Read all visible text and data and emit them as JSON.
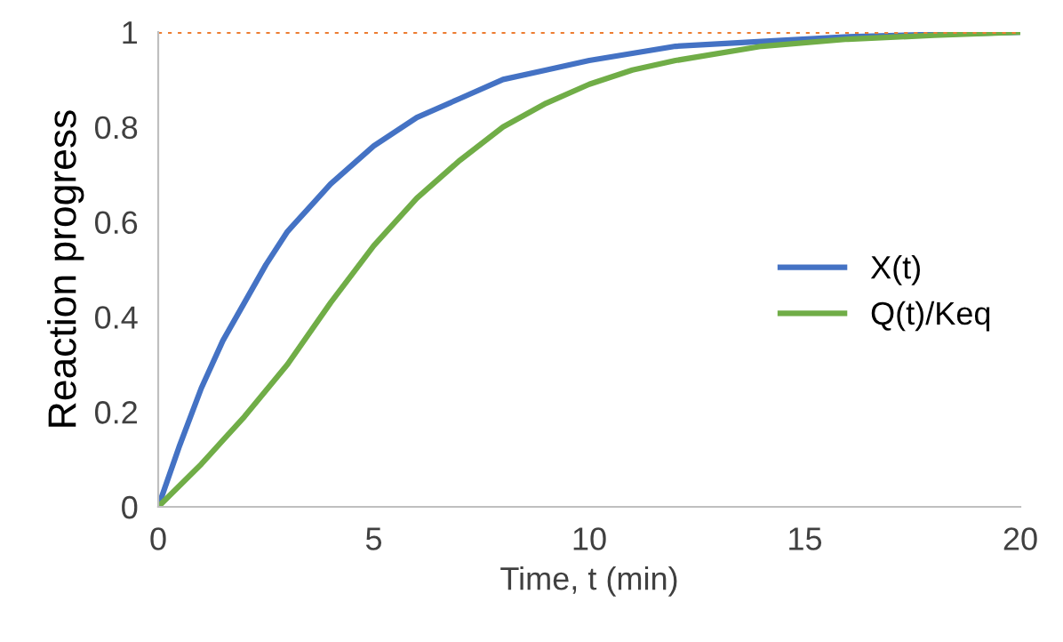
{
  "chart_data": {
    "type": "line",
    "xlabel": "Time, t (min)",
    "ylabel": "Reaction progress",
    "xlim": [
      0,
      20
    ],
    "xticks": [
      0,
      5,
      10,
      15,
      20
    ],
    "ylim": [
      0,
      1
    ],
    "yticks": [
      0,
      0.2,
      0.4,
      0.6,
      0.8,
      1
    ],
    "grid": false,
    "legend": "right",
    "marker": "none",
    "line_style": "solid",
    "series": [
      {
        "name": "X(t)",
        "color": "#4472c4",
        "x": [
          0,
          0.5,
          1,
          1.5,
          2,
          2.5,
          3,
          3.5,
          4,
          5,
          6,
          7,
          8,
          9,
          10,
          12,
          14,
          16,
          18,
          20
        ],
        "values": [
          0,
          0.13,
          0.25,
          0.35,
          0.43,
          0.51,
          0.58,
          0.63,
          0.68,
          0.76,
          0.82,
          0.86,
          0.9,
          0.92,
          0.94,
          0.97,
          0.98,
          0.99,
          0.995,
          1
        ]
      },
      {
        "name": "Q(t)/Keq",
        "color": "#70ad47",
        "x": [
          0,
          1,
          2,
          3,
          4,
          5,
          6,
          7,
          8,
          9,
          10,
          11,
          12,
          14,
          16,
          18,
          20
        ],
        "values": [
          0,
          0.09,
          0.19,
          0.3,
          0.43,
          0.55,
          0.65,
          0.73,
          0.8,
          0.85,
          0.89,
          0.92,
          0.94,
          0.97,
          0.985,
          0.993,
          1
        ]
      }
    ],
    "ref_lines": [
      {
        "axis": "y",
        "value": 1,
        "color": "#ed7d31",
        "line_style": "dotted"
      }
    ]
  }
}
